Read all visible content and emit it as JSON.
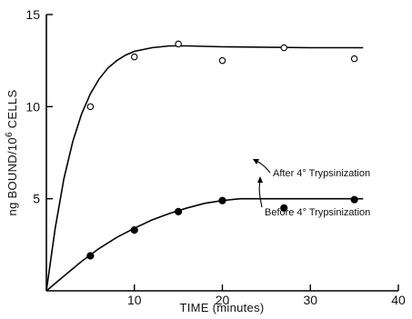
{
  "chart_data": {
    "type": "line",
    "xlabel": "TIME (minutes)",
    "ylabel": "ng BOUND/10⁶ CELLS",
    "xlim": [
      0,
      40
    ],
    "ylim": [
      0,
      15
    ],
    "xticks": [
      10,
      20,
      30,
      40
    ],
    "yticks": [
      5,
      10,
      15
    ],
    "grid": false,
    "series": [
      {
        "name": "Before 4° Trypsinization",
        "marker": "open-circle",
        "x": [
          5,
          10,
          15,
          20,
          27,
          35
        ],
        "y": [
          10.0,
          12.7,
          13.4,
          12.5,
          13.2,
          12.6
        ],
        "curve": [
          [
            0,
            0
          ],
          [
            1,
            3.4
          ],
          [
            2,
            6.1
          ],
          [
            3,
            8.1
          ],
          [
            4,
            9.6
          ],
          [
            5,
            10.7
          ],
          [
            6,
            11.5
          ],
          [
            7,
            12.1
          ],
          [
            8,
            12.5
          ],
          [
            9,
            12.8
          ],
          [
            10,
            13.0
          ],
          [
            12,
            13.2
          ],
          [
            14,
            13.3
          ],
          [
            16,
            13.3
          ],
          [
            20,
            13.25
          ],
          [
            30,
            13.2
          ],
          [
            36,
            13.2
          ]
        ]
      },
      {
        "name": "After 4° Trypsinization",
        "marker": "filled-circle",
        "x": [
          5,
          10,
          15,
          20,
          27,
          35
        ],
        "y": [
          1.9,
          3.3,
          4.3,
          4.9,
          4.5,
          4.95
        ],
        "curve": [
          [
            0,
            0
          ],
          [
            2,
            0.8
          ],
          [
            4,
            1.6
          ],
          [
            6,
            2.3
          ],
          [
            8,
            2.9
          ],
          [
            10,
            3.4
          ],
          [
            12,
            3.85
          ],
          [
            14,
            4.2
          ],
          [
            16,
            4.5
          ],
          [
            18,
            4.75
          ],
          [
            20,
            4.9
          ],
          [
            22,
            5.0
          ],
          [
            26,
            5.0
          ],
          [
            36,
            5.0
          ]
        ]
      }
    ],
    "annotations": [
      {
        "text": "Before 4° Trypsinization",
        "series": 0
      },
      {
        "text": "After 4° Trypsinization",
        "series": 1
      }
    ]
  }
}
